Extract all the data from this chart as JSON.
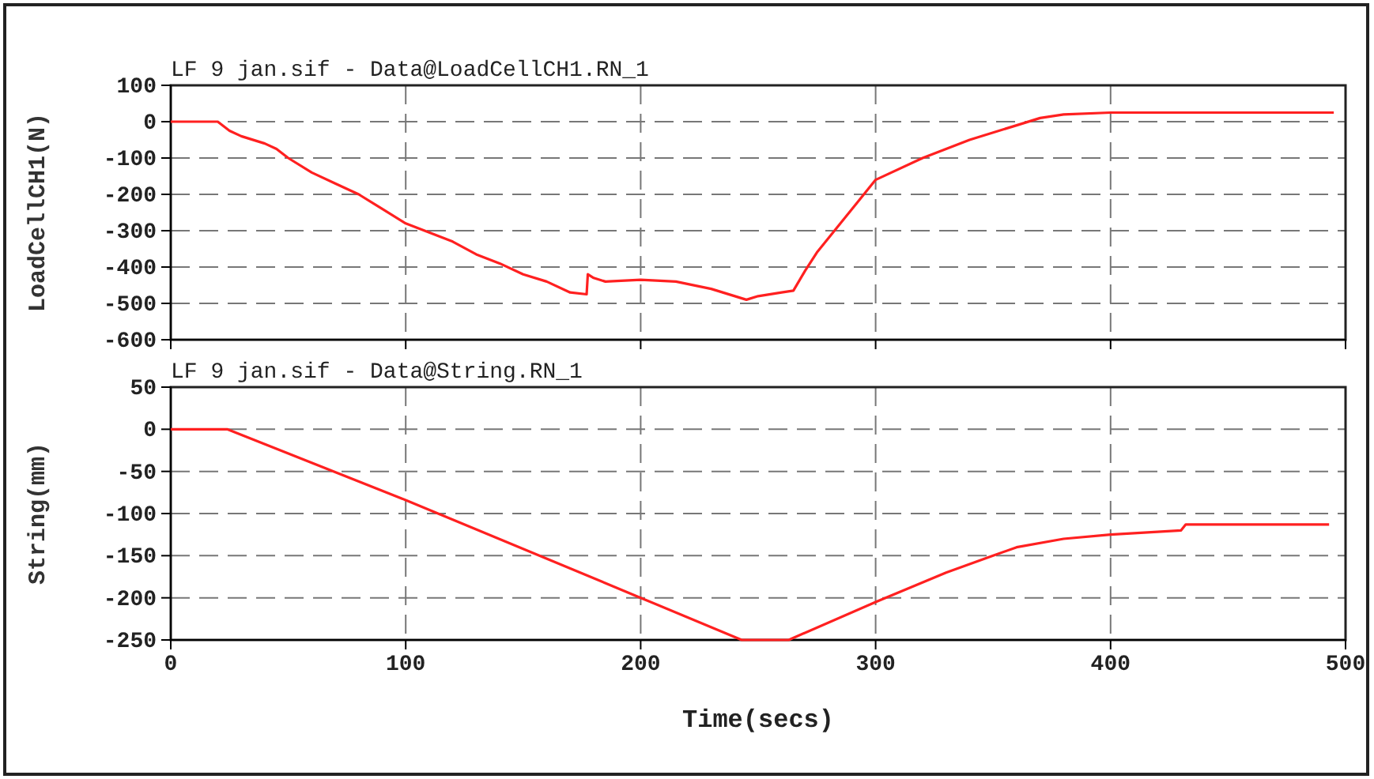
{
  "chart_data": [
    {
      "type": "line",
      "title": "LF 9 jan.sif - Data@LoadCellCH1.RN_1",
      "ylabel": "LoadCellCH1(N)",
      "xlim": [
        0,
        500
      ],
      "xticks": [
        0,
        100,
        200,
        300,
        400,
        500
      ],
      "ylim": [
        -600,
        100
      ],
      "yticks": [
        100,
        0,
        -100,
        -200,
        -300,
        -400,
        -500,
        -600
      ],
      "grid": true,
      "tick_labels": "y",
      "series": [
        {
          "color": "#ff2020",
          "x": [
            0,
            20,
            25,
            30,
            40,
            45,
            50,
            60,
            70,
            80,
            90,
            100,
            110,
            120,
            130,
            140,
            150,
            160,
            170,
            177,
            177.5,
            180,
            185,
            200,
            215,
            230,
            245,
            250,
            260,
            265,
            270,
            275,
            285,
            300,
            320,
            340,
            360,
            370,
            380,
            400,
            420,
            495
          ],
          "values": [
            0,
            0,
            -25,
            -40,
            -60,
            -75,
            -100,
            -140,
            -170,
            -200,
            -240,
            -280,
            -305,
            -330,
            -365,
            -390,
            -420,
            -440,
            -470,
            -475,
            -420,
            -430,
            -440,
            -435,
            -440,
            -460,
            -490,
            -480,
            -470,
            -465,
            -410,
            -360,
            -280,
            -160,
            -100,
            -50,
            -10,
            10,
            20,
            25,
            25,
            25
          ]
        }
      ]
    },
    {
      "type": "line",
      "title": "LF 9 jan.sif - Data@String.RN_1",
      "xlabel": "Time(secs)",
      "ylabel": "String(mm)",
      "xlim": [
        0,
        500
      ],
      "xticks": [
        0,
        100,
        200,
        300,
        400,
        500
      ],
      "ylim": [
        -250,
        50
      ],
      "yticks": [
        50,
        0,
        -50,
        -100,
        -150,
        -200,
        -250
      ],
      "grid": true,
      "series": [
        {
          "color": "#ff2020",
          "x": [
            0,
            24,
            100,
            200,
            243,
            263,
            300,
            330,
            350,
            360,
            380,
            400,
            430,
            432,
            493
          ],
          "values": [
            0,
            0,
            -84,
            -200,
            -250,
            -250,
            -205,
            -170,
            -150,
            -140,
            -130,
            -125,
            -120,
            -113,
            -113
          ]
        }
      ]
    }
  ]
}
